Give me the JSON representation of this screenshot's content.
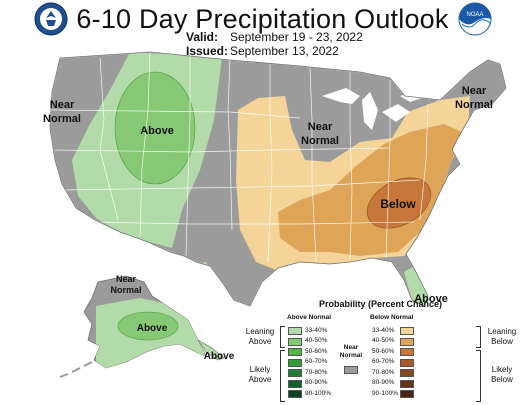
{
  "header": {
    "title": "6-10 Day Precipitation Outlook",
    "valid_label": "Valid:",
    "valid_value": "September 19 - 23, 2022",
    "issued_label": "Issued:",
    "issued_value": "September 13, 2022",
    "left_logo": "commerce-seal-icon",
    "right_logo": "noaa-logo-icon",
    "right_logo_text": "NOAA"
  },
  "map": {
    "labels": {
      "west_near_normal_1": "Near",
      "west_near_normal_2": "Normal",
      "northwest_above": "Above",
      "great_lakes_near_normal_1": "Near",
      "great_lakes_near_normal_2": "Normal",
      "northeast_near_normal_1": "Near",
      "northeast_near_normal_2": "Normal",
      "southeast_below": "Below",
      "florida_above": "Above",
      "alaska_near_normal_1": "Near",
      "alaska_near_normal_2": "Normal",
      "alaska_above": "Above",
      "aleutian_above": "Above"
    },
    "colors": {
      "near_normal": "#9b9b9b",
      "above_33_40": "#b3dba9",
      "above_40_50": "#86c873",
      "below_33_40": "#f5d499",
      "below_40_50": "#dea458",
      "below_50_60": "#c7773a"
    }
  },
  "legend": {
    "title": "Probability (Percent Chance)",
    "above_header": "Above Normal",
    "below_header": "Below Normal",
    "near_normal_label_1": "Near",
    "near_normal_label_2": "Normal",
    "leaning_above_1": "Leaning",
    "leaning_above_2": "Above",
    "likely_above_1": "Likely",
    "likely_above_2": "Above",
    "leaning_below_1": "Leaning",
    "leaning_below_2": "Below",
    "likely_below_1": "Likely",
    "likely_below_2": "Below",
    "near_normal_color": "#9b9b9b",
    "above": [
      {
        "range": "33-40%",
        "color": "#b3dba9"
      },
      {
        "range": "40-50%",
        "color": "#86c873"
      },
      {
        "range": "50-60%",
        "color": "#54b246"
      },
      {
        "range": "60-70%",
        "color": "#329a3a"
      },
      {
        "range": "70-80%",
        "color": "#1e7d33"
      },
      {
        "range": "80-90%",
        "color": "#12612a"
      },
      {
        "range": "90-100%",
        "color": "#0b4220"
      }
    ],
    "below": [
      {
        "range": "33-40%",
        "color": "#f5d499"
      },
      {
        "range": "40-50%",
        "color": "#dea458"
      },
      {
        "range": "50-60%",
        "color": "#c7773a"
      },
      {
        "range": "60-70%",
        "color": "#a75a2b"
      },
      {
        "range": "70-80%",
        "color": "#874521"
      },
      {
        "range": "80-90%",
        "color": "#68321a"
      },
      {
        "range": "90-100%",
        "color": "#4a2314"
      }
    ]
  }
}
